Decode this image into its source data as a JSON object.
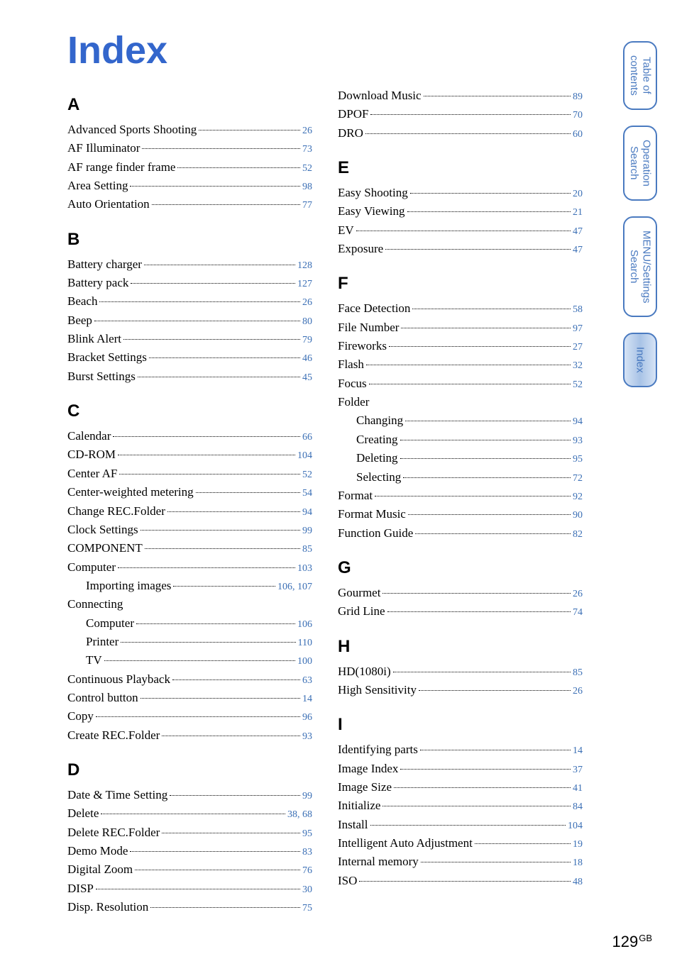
{
  "colors": {
    "title": "#3366cc",
    "page_link": "#3b6fb5",
    "tab_border": "#4a7ac0",
    "tab_text": "#4a7ac0",
    "tab_active_bg": "#b7cdea",
    "text": "#000000",
    "background": "#ffffff"
  },
  "typography": {
    "title_family": "Arial",
    "title_size_pt": 40,
    "title_weight": 800,
    "body_family": "Times New Roman",
    "entry_size_pt": 13,
    "section_letter_family": "Arial",
    "section_letter_size_pt": 18,
    "section_letter_weight": 800,
    "page_number_size_pt": 11,
    "footer_size_pt": 16
  },
  "title": "Index",
  "footer": {
    "page": "129",
    "suffix": "GB"
  },
  "side_tabs": [
    {
      "label": "Table of\ncontents",
      "active": false
    },
    {
      "label": "Operation\nSearch",
      "active": false
    },
    {
      "label": "MENU/Settings\nSearch",
      "active": false
    },
    {
      "label": "Index",
      "active": true
    }
  ],
  "left_sections": [
    {
      "letter": "A",
      "entries": [
        {
          "label": "Advanced Sports Shooting",
          "pages": [
            "26"
          ]
        },
        {
          "label": "AF Illuminator",
          "pages": [
            "73"
          ]
        },
        {
          "label": "AF range finder frame",
          "pages": [
            "52"
          ]
        },
        {
          "label": "Area Setting",
          "pages": [
            "98"
          ]
        },
        {
          "label": "Auto Orientation",
          "pages": [
            "77"
          ]
        }
      ]
    },
    {
      "letter": "B",
      "entries": [
        {
          "label": "Battery charger",
          "pages": [
            "128"
          ]
        },
        {
          "label": "Battery pack",
          "pages": [
            "127"
          ]
        },
        {
          "label": "Beach",
          "pages": [
            "26"
          ]
        },
        {
          "label": "Beep",
          "pages": [
            "80"
          ]
        },
        {
          "label": "Blink Alert",
          "pages": [
            "79"
          ]
        },
        {
          "label": "Bracket Settings",
          "pages": [
            "46"
          ]
        },
        {
          "label": "Burst Settings",
          "pages": [
            "45"
          ]
        }
      ]
    },
    {
      "letter": "C",
      "entries": [
        {
          "label": "Calendar",
          "pages": [
            "66"
          ]
        },
        {
          "label": "CD-ROM",
          "pages": [
            "104"
          ]
        },
        {
          "label": "Center AF",
          "pages": [
            "52"
          ]
        },
        {
          "label": "Center-weighted metering",
          "pages": [
            "54"
          ]
        },
        {
          "label": "Change REC.Folder",
          "pages": [
            "94"
          ]
        },
        {
          "label": "Clock Settings",
          "pages": [
            "99"
          ]
        },
        {
          "label": "COMPONENT",
          "pages": [
            "85"
          ]
        },
        {
          "label": "Computer",
          "pages": [
            "103"
          ]
        },
        {
          "label": "Importing images",
          "pages": [
            "106",
            "107"
          ],
          "sub": true
        },
        {
          "label": "Connecting",
          "heading_only": true
        },
        {
          "label": "Computer",
          "pages": [
            "106"
          ],
          "sub": true
        },
        {
          "label": "Printer",
          "pages": [
            "110"
          ],
          "sub": true
        },
        {
          "label": "TV",
          "pages": [
            "100"
          ],
          "sub": true
        },
        {
          "label": "Continuous Playback",
          "pages": [
            "63"
          ]
        },
        {
          "label": "Control button",
          "pages": [
            "14"
          ]
        },
        {
          "label": "Copy",
          "pages": [
            "96"
          ]
        },
        {
          "label": "Create REC.Folder",
          "pages": [
            "93"
          ]
        }
      ]
    },
    {
      "letter": "D",
      "entries": [
        {
          "label": "Date & Time Setting",
          "pages": [
            "99"
          ]
        },
        {
          "label": "Delete",
          "pages": [
            "38",
            "68"
          ]
        },
        {
          "label": "Delete REC.Folder",
          "pages": [
            "95"
          ]
        },
        {
          "label": "Demo Mode",
          "pages": [
            "83"
          ]
        },
        {
          "label": "Digital Zoom",
          "pages": [
            "76"
          ]
        },
        {
          "label": "DISP",
          "pages": [
            "30"
          ]
        },
        {
          "label": "Disp. Resolution",
          "pages": [
            "75"
          ]
        }
      ]
    }
  ],
  "right_top_entries": [
    {
      "label": "Download Music",
      "pages": [
        "89"
      ]
    },
    {
      "label": "DPOF",
      "pages": [
        "70"
      ]
    },
    {
      "label": "DRO",
      "pages": [
        "60"
      ]
    }
  ],
  "right_sections": [
    {
      "letter": "E",
      "entries": [
        {
          "label": "Easy Shooting",
          "pages": [
            "20"
          ]
        },
        {
          "label": "Easy Viewing",
          "pages": [
            "21"
          ]
        },
        {
          "label": "EV",
          "pages": [
            "47"
          ]
        },
        {
          "label": "Exposure",
          "pages": [
            "47"
          ]
        }
      ]
    },
    {
      "letter": "F",
      "entries": [
        {
          "label": "Face Detection",
          "pages": [
            "58"
          ]
        },
        {
          "label": "File Number",
          "pages": [
            "97"
          ]
        },
        {
          "label": "Fireworks",
          "pages": [
            "27"
          ]
        },
        {
          "label": "Flash",
          "pages": [
            "32"
          ]
        },
        {
          "label": "Focus",
          "pages": [
            "52"
          ]
        },
        {
          "label": "Folder",
          "heading_only": true
        },
        {
          "label": "Changing",
          "pages": [
            "94"
          ],
          "sub": true
        },
        {
          "label": "Creating",
          "pages": [
            "93"
          ],
          "sub": true
        },
        {
          "label": "Deleting",
          "pages": [
            "95"
          ],
          "sub": true
        },
        {
          "label": "Selecting",
          "pages": [
            "72"
          ],
          "sub": true
        },
        {
          "label": "Format",
          "pages": [
            "92"
          ]
        },
        {
          "label": "Format Music",
          "pages": [
            "90"
          ]
        },
        {
          "label": "Function Guide",
          "pages": [
            "82"
          ]
        }
      ]
    },
    {
      "letter": "G",
      "entries": [
        {
          "label": "Gourmet",
          "pages": [
            "26"
          ]
        },
        {
          "label": "Grid Line",
          "pages": [
            "74"
          ]
        }
      ]
    },
    {
      "letter": "H",
      "entries": [
        {
          "label": "HD(1080i)",
          "pages": [
            "85"
          ]
        },
        {
          "label": "High Sensitivity",
          "pages": [
            "26"
          ]
        }
      ]
    },
    {
      "letter": "I",
      "entries": [
        {
          "label": "Identifying parts",
          "pages": [
            "14"
          ]
        },
        {
          "label": "Image Index",
          "pages": [
            "37"
          ]
        },
        {
          "label": "Image Size",
          "pages": [
            "41"
          ]
        },
        {
          "label": "Initialize",
          "pages": [
            "84"
          ]
        },
        {
          "label": "Install",
          "pages": [
            "104"
          ]
        },
        {
          "label": "Intelligent Auto Adjustment",
          "pages": [
            "19"
          ]
        },
        {
          "label": "Internal memory",
          "pages": [
            "18"
          ]
        },
        {
          "label": "ISO",
          "pages": [
            "48"
          ]
        }
      ]
    }
  ]
}
